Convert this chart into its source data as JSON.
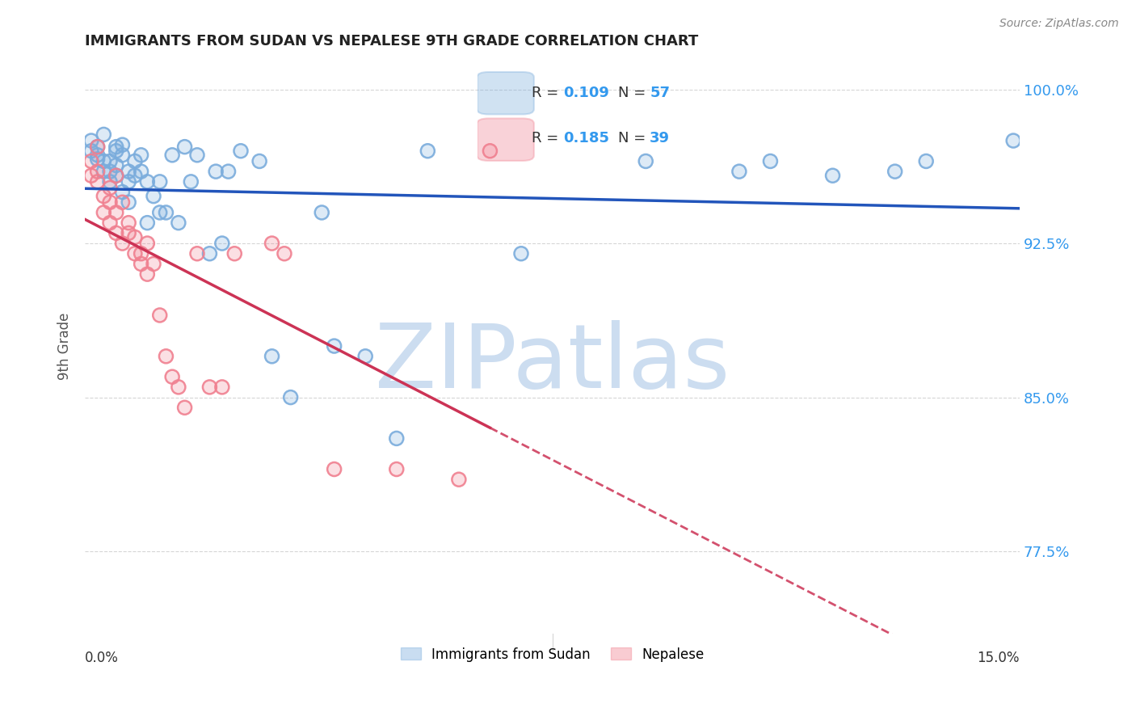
{
  "title": "IMMIGRANTS FROM SUDAN VS NEPALESE 9TH GRADE CORRELATION CHART",
  "source": "Source: ZipAtlas.com",
  "ylabel": "9th Grade",
  "y_ticks": [
    77.5,
    85.0,
    92.5,
    100.0
  ],
  "y_tick_labels": [
    "77.5%",
    "85.0%",
    "92.5%",
    "100.0%"
  ],
  "x_min": 0.0,
  "x_max": 0.15,
  "y_min": 73.5,
  "y_max": 101.5,
  "color_blue": "#7aacdc",
  "color_pink": "#f08090",
  "color_blue_line": "#2255bb",
  "color_pink_line": "#cc3355",
  "watermark_zip": "ZIP",
  "watermark_atlas": "atlas",
  "watermark_color_zip": "#c8d8f0",
  "watermark_color_atlas": "#b0c8e8",
  "grid_color": "#cccccc",
  "tick_color": "#3399ee",
  "bg_color": "#ffffff",
  "blue_scatter_x": [
    0.001,
    0.001,
    0.002,
    0.002,
    0.002,
    0.003,
    0.003,
    0.003,
    0.004,
    0.004,
    0.004,
    0.005,
    0.005,
    0.005,
    0.005,
    0.006,
    0.006,
    0.006,
    0.007,
    0.007,
    0.007,
    0.008,
    0.008,
    0.009,
    0.009,
    0.01,
    0.01,
    0.011,
    0.012,
    0.012,
    0.013,
    0.014,
    0.015,
    0.016,
    0.017,
    0.018,
    0.02,
    0.021,
    0.022,
    0.023,
    0.025,
    0.028,
    0.03,
    0.033,
    0.038,
    0.04,
    0.045,
    0.05,
    0.055,
    0.07,
    0.09,
    0.105,
    0.11,
    0.12,
    0.13,
    0.135,
    0.149
  ],
  "blue_scatter_y": [
    97.0,
    97.5,
    96.8,
    97.2,
    96.6,
    97.8,
    96.0,
    96.5,
    96.0,
    96.5,
    95.5,
    97.2,
    95.8,
    96.3,
    97.0,
    95.0,
    96.8,
    97.3,
    95.5,
    96.0,
    94.5,
    96.5,
    95.8,
    96.0,
    96.8,
    95.5,
    93.5,
    94.8,
    95.5,
    94.0,
    94.0,
    96.8,
    93.5,
    97.2,
    95.5,
    96.8,
    92.0,
    96.0,
    92.5,
    96.0,
    97.0,
    96.5,
    87.0,
    85.0,
    94.0,
    87.5,
    87.0,
    83.0,
    97.0,
    92.0,
    96.5,
    96.0,
    96.5,
    95.8,
    96.0,
    96.5,
    97.5
  ],
  "pink_scatter_x": [
    0.001,
    0.001,
    0.002,
    0.002,
    0.002,
    0.003,
    0.003,
    0.004,
    0.004,
    0.004,
    0.005,
    0.005,
    0.005,
    0.006,
    0.006,
    0.007,
    0.007,
    0.008,
    0.008,
    0.009,
    0.009,
    0.01,
    0.01,
    0.011,
    0.012,
    0.013,
    0.014,
    0.015,
    0.016,
    0.018,
    0.02,
    0.022,
    0.024,
    0.03,
    0.032,
    0.04,
    0.05,
    0.06,
    0.065
  ],
  "pink_scatter_y": [
    96.5,
    95.8,
    97.2,
    95.5,
    96.0,
    94.0,
    94.8,
    95.2,
    93.5,
    94.5,
    95.8,
    93.0,
    94.0,
    92.5,
    94.5,
    93.0,
    93.5,
    92.0,
    92.8,
    91.5,
    92.0,
    91.0,
    92.5,
    91.5,
    89.0,
    87.0,
    86.0,
    85.5,
    84.5,
    92.0,
    85.5,
    85.5,
    92.0,
    92.5,
    92.0,
    81.5,
    81.5,
    81.0,
    97.0
  ]
}
